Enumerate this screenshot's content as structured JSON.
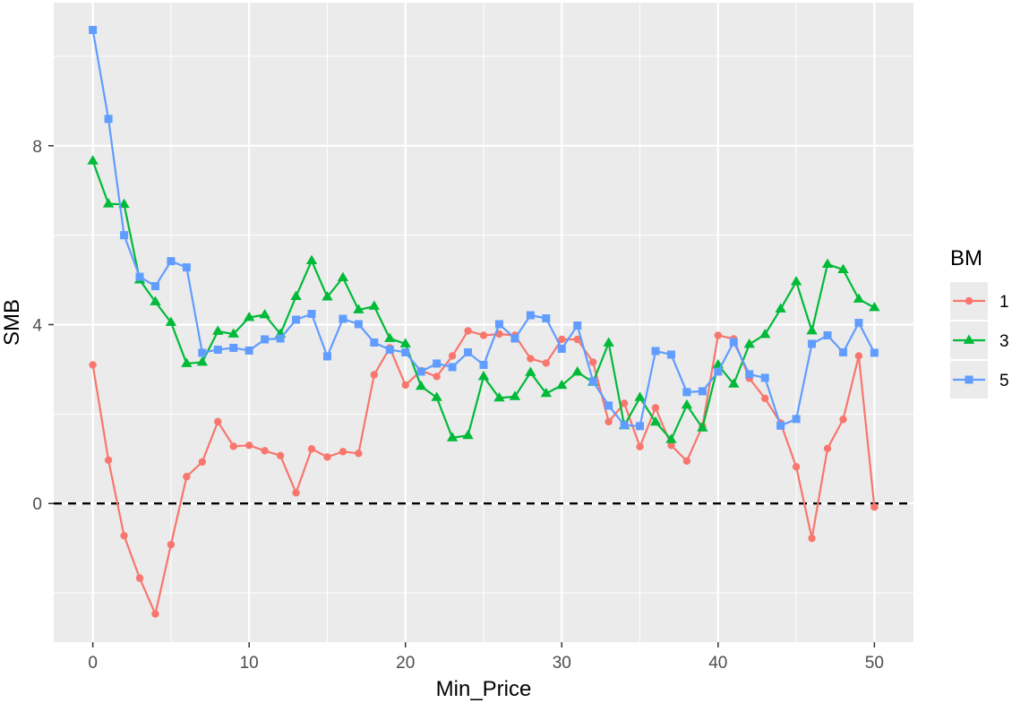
{
  "chart_data": {
    "type": "line",
    "xlabel": "Min_Price",
    "ylabel": "SMB",
    "xlim": [
      -2.5,
      52.5
    ],
    "ylim": [
      -3.1,
      11.2
    ],
    "x_ticks": [
      0,
      10,
      20,
      30,
      40,
      50
    ],
    "y_ticks": [
      0,
      4,
      8
    ],
    "grid": true,
    "reference_line": {
      "y": 0,
      "style": "dashed"
    },
    "legend": {
      "title": "BM",
      "placement": "right"
    },
    "x": [
      0,
      1,
      2,
      3,
      4,
      5,
      6,
      7,
      8,
      9,
      10,
      11,
      12,
      13,
      14,
      15,
      16,
      17,
      18,
      19,
      20,
      21,
      22,
      23,
      24,
      25,
      26,
      27,
      28,
      29,
      30,
      31,
      32,
      33,
      34,
      35,
      36,
      37,
      38,
      39,
      40,
      41,
      42,
      43,
      44,
      45,
      46,
      47,
      48,
      49,
      50
    ],
    "series": [
      {
        "name": "1",
        "color": "#F8766D",
        "marker": "circle",
        "values": [
          3.1,
          0.97,
          -0.72,
          -1.67,
          -2.47,
          -0.92,
          0.6,
          0.93,
          1.83,
          1.28,
          1.3,
          1.18,
          1.07,
          0.24,
          1.22,
          1.04,
          1.16,
          1.12,
          2.88,
          3.48,
          2.65,
          2.97,
          2.84,
          3.3,
          3.86,
          3.76,
          3.79,
          3.76,
          3.24,
          3.14,
          3.67,
          3.67,
          3.16,
          1.83,
          2.24,
          1.27,
          2.14,
          1.3,
          0.95,
          1.73,
          3.76,
          3.68,
          2.8,
          2.35,
          1.8,
          0.82,
          -0.78,
          1.23,
          1.88,
          3.3,
          -0.08
        ]
      },
      {
        "name": "3",
        "color": "#00BA38",
        "marker": "triangle",
        "values": [
          7.66,
          6.7,
          6.69,
          5.0,
          4.51,
          4.05,
          3.13,
          3.16,
          3.85,
          3.79,
          4.16,
          4.22,
          3.79,
          4.63,
          5.43,
          4.62,
          5.05,
          4.33,
          4.41,
          3.69,
          3.57,
          2.62,
          2.37,
          1.47,
          1.52,
          2.84,
          2.36,
          2.39,
          2.93,
          2.46,
          2.64,
          2.94,
          2.71,
          3.59,
          1.74,
          2.37,
          1.82,
          1.43,
          2.2,
          1.69,
          3.1,
          2.67,
          3.56,
          3.78,
          4.35,
          4.96,
          3.86,
          5.35,
          5.23,
          4.57,
          4.38
        ]
      },
      {
        "name": "5",
        "color": "#619CFF",
        "marker": "square",
        "values": [
          10.59,
          8.6,
          6.0,
          5.07,
          4.86,
          5.42,
          5.28,
          3.37,
          3.44,
          3.48,
          3.42,
          3.67,
          3.69,
          4.11,
          4.24,
          3.29,
          4.13,
          4.01,
          3.6,
          3.44,
          3.38,
          2.95,
          3.13,
          3.05,
          3.38,
          3.1,
          4.01,
          3.69,
          4.21,
          4.14,
          3.46,
          3.98,
          2.73,
          2.19,
          1.75,
          1.73,
          3.41,
          3.33,
          2.49,
          2.51,
          2.95,
          3.61,
          2.89,
          2.81,
          1.74,
          1.89,
          3.57,
          3.76,
          3.38,
          4.04,
          3.37
        ]
      }
    ]
  }
}
